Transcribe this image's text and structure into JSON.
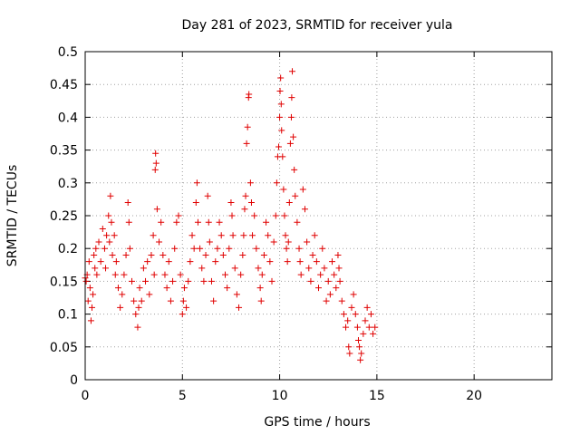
{
  "chart_data": {
    "type": "scatter",
    "title": "Day 281 of 2023, SRMTID for receiver yula",
    "xlabel": "GPS time / hours",
    "ylabel": "SRMTID / TECUs",
    "xlim": [
      0,
      24
    ],
    "ylim": [
      0,
      0.5
    ],
    "xticks": [
      0,
      5,
      10,
      15,
      20
    ],
    "xtick_labels": [
      "0",
      "5",
      "10",
      "15",
      "20"
    ],
    "yticks": [
      0,
      0.05,
      0.1,
      0.15,
      0.2,
      0.25,
      0.3,
      0.35,
      0.4,
      0.45,
      0.5
    ],
    "ytick_labels": [
      "0",
      "0.05",
      "0.1",
      "0.15",
      "0.2",
      "0.25",
      "0.3",
      "0.35",
      "0.4",
      "0.45",
      "0.5"
    ],
    "grid": true,
    "marker": "+",
    "color": "#e00000",
    "series": [
      {
        "name": "yula",
        "points": [
          [
            0.0,
            0.155
          ],
          [
            0.05,
            0.15
          ],
          [
            0.1,
            0.16
          ],
          [
            0.15,
            0.12
          ],
          [
            0.2,
            0.18
          ],
          [
            0.25,
            0.14
          ],
          [
            0.3,
            0.09
          ],
          [
            0.35,
            0.11
          ],
          [
            0.4,
            0.13
          ],
          [
            0.45,
            0.19
          ],
          [
            0.5,
            0.17
          ],
          [
            0.55,
            0.2
          ],
          [
            0.6,
            0.16
          ],
          [
            0.7,
            0.21
          ],
          [
            0.8,
            0.18
          ],
          [
            0.9,
            0.23
          ],
          [
            1.0,
            0.2
          ],
          [
            1.05,
            0.17
          ],
          [
            1.1,
            0.22
          ],
          [
            1.2,
            0.25
          ],
          [
            1.25,
            0.21
          ],
          [
            1.3,
            0.28
          ],
          [
            1.35,
            0.24
          ],
          [
            1.4,
            0.19
          ],
          [
            1.5,
            0.22
          ],
          [
            1.55,
            0.16
          ],
          [
            1.6,
            0.18
          ],
          [
            1.7,
            0.14
          ],
          [
            1.8,
            0.11
          ],
          [
            1.9,
            0.13
          ],
          [
            2.0,
            0.16
          ],
          [
            2.1,
            0.19
          ],
          [
            2.2,
            0.27
          ],
          [
            2.25,
            0.24
          ],
          [
            2.3,
            0.2
          ],
          [
            2.4,
            0.15
          ],
          [
            2.5,
            0.12
          ],
          [
            2.6,
            0.1
          ],
          [
            2.7,
            0.08
          ],
          [
            2.75,
            0.11
          ],
          [
            2.8,
            0.14
          ],
          [
            2.9,
            0.12
          ],
          [
            3.0,
            0.17
          ],
          [
            3.1,
            0.15
          ],
          [
            3.2,
            0.18
          ],
          [
            3.3,
            0.13
          ],
          [
            3.4,
            0.19
          ],
          [
            3.5,
            0.22
          ],
          [
            3.55,
            0.16
          ],
          [
            3.6,
            0.32
          ],
          [
            3.62,
            0.345
          ],
          [
            3.65,
            0.33
          ],
          [
            3.7,
            0.26
          ],
          [
            3.8,
            0.21
          ],
          [
            3.9,
            0.24
          ],
          [
            4.0,
            0.19
          ],
          [
            4.1,
            0.16
          ],
          [
            4.2,
            0.14
          ],
          [
            4.3,
            0.18
          ],
          [
            4.4,
            0.12
          ],
          [
            4.5,
            0.15
          ],
          [
            4.6,
            0.2
          ],
          [
            4.7,
            0.24
          ],
          [
            4.8,
            0.25
          ],
          [
            4.9,
            0.16
          ],
          [
            5.0,
            0.1
          ],
          [
            5.05,
            0.12
          ],
          [
            5.1,
            0.14
          ],
          [
            5.2,
            0.11
          ],
          [
            5.3,
            0.15
          ],
          [
            5.4,
            0.18
          ],
          [
            5.5,
            0.22
          ],
          [
            5.6,
            0.2
          ],
          [
            5.7,
            0.27
          ],
          [
            5.75,
            0.3
          ],
          [
            5.8,
            0.24
          ],
          [
            5.9,
            0.2
          ],
          [
            6.0,
            0.17
          ],
          [
            6.1,
            0.15
          ],
          [
            6.2,
            0.19
          ],
          [
            6.3,
            0.28
          ],
          [
            6.35,
            0.24
          ],
          [
            6.4,
            0.21
          ],
          [
            6.5,
            0.15
          ],
          [
            6.6,
            0.12
          ],
          [
            6.7,
            0.18
          ],
          [
            6.8,
            0.2
          ],
          [
            6.9,
            0.24
          ],
          [
            7.0,
            0.22
          ],
          [
            7.1,
            0.19
          ],
          [
            7.2,
            0.16
          ],
          [
            7.3,
            0.14
          ],
          [
            7.4,
            0.2
          ],
          [
            7.5,
            0.27
          ],
          [
            7.55,
            0.25
          ],
          [
            7.6,
            0.22
          ],
          [
            7.7,
            0.17
          ],
          [
            7.8,
            0.13
          ],
          [
            7.9,
            0.11
          ],
          [
            8.0,
            0.16
          ],
          [
            8.1,
            0.19
          ],
          [
            8.15,
            0.22
          ],
          [
            8.2,
            0.26
          ],
          [
            8.25,
            0.28
          ],
          [
            8.3,
            0.36
          ],
          [
            8.35,
            0.385
          ],
          [
            8.4,
            0.43
          ],
          [
            8.42,
            0.435
          ],
          [
            8.5,
            0.3
          ],
          [
            8.55,
            0.27
          ],
          [
            8.6,
            0.22
          ],
          [
            8.7,
            0.25
          ],
          [
            8.8,
            0.2
          ],
          [
            8.9,
            0.17
          ],
          [
            9.0,
            0.14
          ],
          [
            9.05,
            0.12
          ],
          [
            9.1,
            0.16
          ],
          [
            9.2,
            0.19
          ],
          [
            9.3,
            0.24
          ],
          [
            9.4,
            0.22
          ],
          [
            9.5,
            0.18
          ],
          [
            9.6,
            0.15
          ],
          [
            9.7,
            0.21
          ],
          [
            9.8,
            0.25
          ],
          [
            9.85,
            0.3
          ],
          [
            9.9,
            0.34
          ],
          [
            9.95,
            0.355
          ],
          [
            10.0,
            0.4
          ],
          [
            10.02,
            0.44
          ],
          [
            10.05,
            0.46
          ],
          [
            10.08,
            0.42
          ],
          [
            10.1,
            0.38
          ],
          [
            10.15,
            0.34
          ],
          [
            10.2,
            0.29
          ],
          [
            10.25,
            0.25
          ],
          [
            10.3,
            0.22
          ],
          [
            10.35,
            0.2
          ],
          [
            10.4,
            0.18
          ],
          [
            10.45,
            0.21
          ],
          [
            10.5,
            0.27
          ],
          [
            10.55,
            0.36
          ],
          [
            10.6,
            0.4
          ],
          [
            10.62,
            0.43
          ],
          [
            10.65,
            0.47
          ],
          [
            10.7,
            0.37
          ],
          [
            10.75,
            0.32
          ],
          [
            10.8,
            0.28
          ],
          [
            10.9,
            0.24
          ],
          [
            11.0,
            0.2
          ],
          [
            11.05,
            0.18
          ],
          [
            11.1,
            0.16
          ],
          [
            11.2,
            0.29
          ],
          [
            11.3,
            0.26
          ],
          [
            11.4,
            0.21
          ],
          [
            11.5,
            0.17
          ],
          [
            11.6,
            0.15
          ],
          [
            11.7,
            0.19
          ],
          [
            11.8,
            0.22
          ],
          [
            11.9,
            0.18
          ],
          [
            12.0,
            0.14
          ],
          [
            12.1,
            0.16
          ],
          [
            12.2,
            0.2
          ],
          [
            12.3,
            0.17
          ],
          [
            12.4,
            0.12
          ],
          [
            12.5,
            0.15
          ],
          [
            12.6,
            0.13
          ],
          [
            12.7,
            0.18
          ],
          [
            12.8,
            0.16
          ],
          [
            12.9,
            0.14
          ],
          [
            13.0,
            0.19
          ],
          [
            13.05,
            0.17
          ],
          [
            13.1,
            0.15
          ],
          [
            13.2,
            0.12
          ],
          [
            13.3,
            0.1
          ],
          [
            13.4,
            0.08
          ],
          [
            13.5,
            0.09
          ],
          [
            13.55,
            0.05
          ],
          [
            13.6,
            0.04
          ],
          [
            13.7,
            0.11
          ],
          [
            13.8,
            0.13
          ],
          [
            13.9,
            0.1
          ],
          [
            14.0,
            0.08
          ],
          [
            14.05,
            0.06
          ],
          [
            14.1,
            0.05
          ],
          [
            14.15,
            0.03
          ],
          [
            14.2,
            0.04
          ],
          [
            14.3,
            0.07
          ],
          [
            14.4,
            0.09
          ],
          [
            14.5,
            0.11
          ],
          [
            14.6,
            0.08
          ],
          [
            14.7,
            0.1
          ],
          [
            14.8,
            0.07
          ],
          [
            14.9,
            0.08
          ]
        ]
      }
    ]
  }
}
